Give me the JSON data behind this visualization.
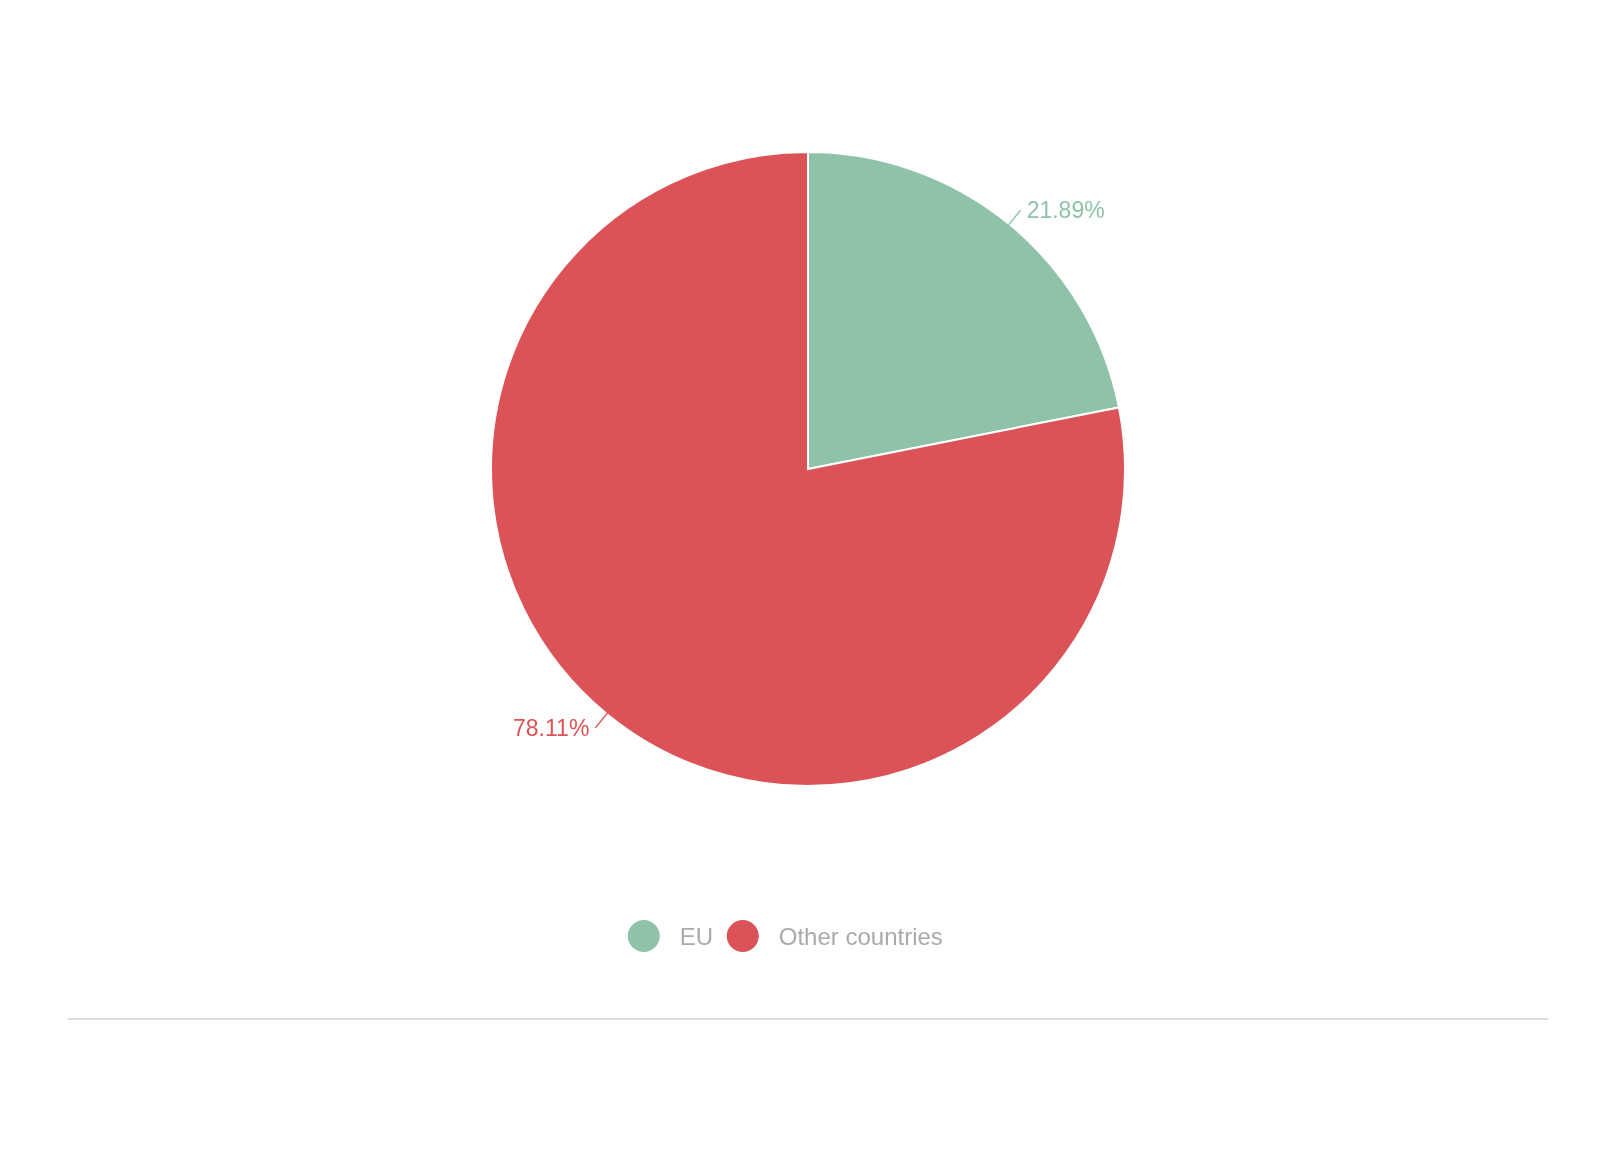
{
  "chart_data": {
    "type": "pie",
    "categories": [
      "EU",
      "Other countries"
    ],
    "values": [
      21.89,
      78.11
    ],
    "colors": [
      "#8fc3a9",
      "#dc5357"
    ],
    "value_labels": [
      "21.89%",
      "78.11%"
    ],
    "legend": "bottom"
  }
}
